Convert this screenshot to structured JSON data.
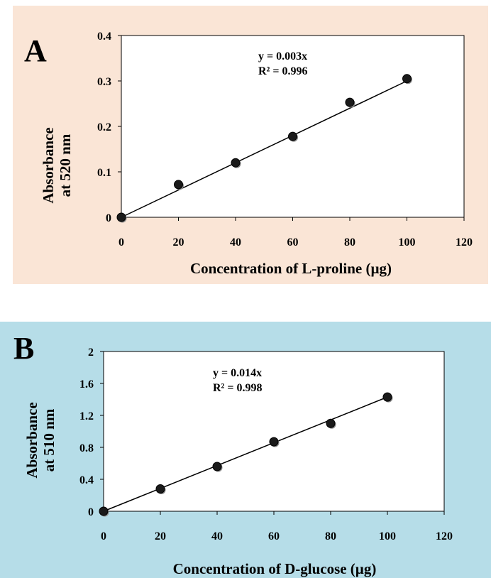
{
  "panels": [
    {
      "id": "A",
      "letter": "A",
      "background": "#fae5d6",
      "equation": "y = 0.003x",
      "r_squared": "R² = 0.996",
      "chart_data": {
        "type": "scatter",
        "xlabel": "Concentration of L-proline (µg)",
        "ylabel_lines": [
          "Absorbance",
          "at 520 nm"
        ],
        "xlim": [
          0,
          120
        ],
        "ylim": [
          0,
          0.4
        ],
        "xticks": [
          "0",
          "20",
          "40",
          "60",
          "80",
          "100",
          "120"
        ],
        "yticks": [
          "0",
          "0.1",
          "0.2",
          "0.3",
          "0.4"
        ],
        "points": [
          {
            "x": 0,
            "y": 0
          },
          {
            "x": 20,
            "y": 0.072
          },
          {
            "x": 40,
            "y": 0.12
          },
          {
            "x": 60,
            "y": 0.178
          },
          {
            "x": 80,
            "y": 0.253
          },
          {
            "x": 100,
            "y": 0.305
          }
        ],
        "trendline": {
          "slope": 0.003,
          "x_start": 0,
          "x_end": 100
        },
        "grid": false,
        "legend": "none"
      }
    },
    {
      "id": "B",
      "letter": "B",
      "background": "#b6dde8",
      "equation": "y = 0.014x",
      "r_squared": "R² = 0.998",
      "chart_data": {
        "type": "scatter",
        "xlabel": "Concentration of D-glucose (µg)",
        "ylabel_lines": [
          "Absorbance",
          "at 510 nm"
        ],
        "xlim": [
          0,
          120
        ],
        "ylim": [
          0,
          2
        ],
        "xticks": [
          "0",
          "20",
          "40",
          "60",
          "80",
          "100",
          "120"
        ],
        "yticks": [
          "0",
          "0.4",
          "0.8",
          "1.2",
          "1.6",
          "2"
        ],
        "points": [
          {
            "x": 0,
            "y": 0
          },
          {
            "x": 20,
            "y": 0.28
          },
          {
            "x": 40,
            "y": 0.56
          },
          {
            "x": 60,
            "y": 0.87
          },
          {
            "x": 80,
            "y": 1.1
          },
          {
            "x": 100,
            "y": 1.43
          }
        ],
        "trendline": {
          "slope": 0.0143,
          "x_start": 0,
          "x_end": 100
        },
        "grid": false,
        "legend": "none"
      }
    }
  ]
}
